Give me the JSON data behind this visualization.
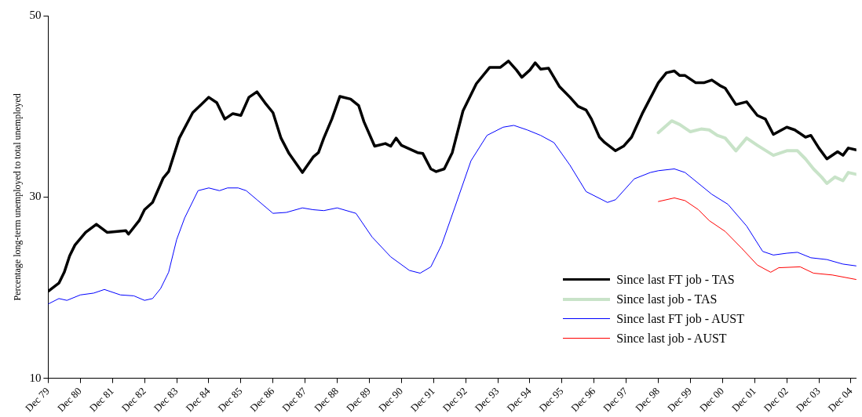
{
  "chart_data": {
    "type": "line",
    "ylabel": "Percentage long-term unemployed to total unemployed",
    "xlim": [
      "1979-12",
      "2005-02"
    ],
    "xticks": [
      {
        "value": "1979-12",
        "label": "Dec 79"
      },
      {
        "value": "1980-12",
        "label": "Dec 80"
      },
      {
        "value": "1981-12",
        "label": "Dec 81"
      },
      {
        "value": "1982-12",
        "label": "Dec 82"
      },
      {
        "value": "1983-12",
        "label": "Dec 83"
      },
      {
        "value": "1984-12",
        "label": "Dec 84"
      },
      {
        "value": "1985-12",
        "label": "Dec 85"
      },
      {
        "value": "1986-12",
        "label": "Dec 86"
      },
      {
        "value": "1987-12",
        "label": "Dec 87"
      },
      {
        "value": "1988-12",
        "label": "Dec 88"
      },
      {
        "value": "1989-12",
        "label": "Dec 89"
      },
      {
        "value": "1990-12",
        "label": "Dec 90"
      },
      {
        "value": "1991-12",
        "label": "Dec 91"
      },
      {
        "value": "1992-12",
        "label": "Dec 92"
      },
      {
        "value": "1993-12",
        "label": "Dec 93"
      },
      {
        "value": "1994-12",
        "label": "Dec 94"
      },
      {
        "value": "1995-12",
        "label": "Dec 95"
      },
      {
        "value": "1996-12",
        "label": "Dec 96"
      },
      {
        "value": "1997-12",
        "label": "Dec 97"
      },
      {
        "value": "1998-12",
        "label": "Dec 98"
      },
      {
        "value": "1999-12",
        "label": "Dec 99"
      },
      {
        "value": "2000-12",
        "label": "Dec 00"
      },
      {
        "value": "2001-12",
        "label": "Dec 01"
      },
      {
        "value": "2002-12",
        "label": "Dec 02"
      },
      {
        "value": "2003-12",
        "label": "Dec 03"
      },
      {
        "value": "2004-12",
        "label": "Dec 04"
      }
    ],
    "ylim": [
      10,
      50
    ],
    "yticks": [
      10,
      30,
      50
    ],
    "grid": false,
    "legend": "bottom right",
    "marker": "none",
    "series": [
      {
        "name": "Since last FT job - TAS",
        "color": "#000000",
        "x": [
          "1979-12",
          "1980-04",
          "1980-06",
          "1980-08",
          "1980-10",
          "1981-02",
          "1981-06",
          "1981-10",
          "1982-05",
          "1982-06",
          "1982-10",
          "1982-12",
          "1983-03",
          "1983-07",
          "1983-09",
          "1984-01",
          "1984-06",
          "1984-12",
          "1985-03",
          "1985-06",
          "1985-09",
          "1985-12",
          "1986-03",
          "1986-06",
          "1986-09",
          "1986-12",
          "1987-03",
          "1987-06",
          "1987-11",
          "1988-03",
          "1988-05",
          "1988-07",
          "1988-10",
          "1989-01",
          "1989-05",
          "1989-08",
          "1989-10",
          "1990-02",
          "1990-06",
          "1990-08",
          "1990-10",
          "1990-12",
          "1991-06",
          "1991-08",
          "1991-11",
          "1992-01",
          "1992-04",
          "1992-07",
          "1992-11",
          "1993-04",
          "1993-09",
          "1994-01",
          "1994-04",
          "1994-07",
          "1994-09",
          "1994-12",
          "1995-02",
          "1995-04",
          "1995-07",
          "1995-11",
          "1996-03",
          "1996-06",
          "1996-09",
          "1996-11",
          "1997-02",
          "1997-04",
          "1997-08",
          "1997-11",
          "1998-02",
          "1998-06",
          "1998-12",
          "1999-03",
          "1999-06",
          "1999-08",
          "1999-10",
          "2000-02",
          "2000-05",
          "2000-08",
          "2000-11",
          "2001-01",
          "2001-05",
          "2001-09",
          "2002-01",
          "2002-04",
          "2002-07",
          "2002-12",
          "2003-03",
          "2003-07",
          "2003-09",
          "2003-12",
          "2004-03",
          "2004-07",
          "2004-09",
          "2004-11",
          "2005-02"
        ],
        "values": [
          19.6,
          20.5,
          21.7,
          23.5,
          24.7,
          26.1,
          27.0,
          26.1,
          26.3,
          25.9,
          27.4,
          28.6,
          29.4,
          32.1,
          32.8,
          36.5,
          39.3,
          41.0,
          40.4,
          38.6,
          39.2,
          39.0,
          41.0,
          41.6,
          40.4,
          39.3,
          36.5,
          34.8,
          32.7,
          34.4,
          34.9,
          36.5,
          38.6,
          41.1,
          40.8,
          40.1,
          38.3,
          35.6,
          35.9,
          35.6,
          36.5,
          35.7,
          34.9,
          34.8,
          33.1,
          32.8,
          33.1,
          34.9,
          39.5,
          42.5,
          44.3,
          44.3,
          45.0,
          44.0,
          43.2,
          44.0,
          44.8,
          44.1,
          44.2,
          42.2,
          41.0,
          40.0,
          39.6,
          38.6,
          36.6,
          36.0,
          35.1,
          35.6,
          36.6,
          39.2,
          42.6,
          43.7,
          43.9,
          43.4,
          43.4,
          42.6,
          42.6,
          42.9,
          42.3,
          42.0,
          40.2,
          40.5,
          39.0,
          38.6,
          36.9,
          37.7,
          37.4,
          36.6,
          36.8,
          35.4,
          34.2,
          35.0,
          34.6,
          35.4,
          35.2
        ]
      },
      {
        "name": "Since last job - TAS",
        "color": "#c8e3c8",
        "x": [
          "1998-12",
          "1999-05",
          "1999-08",
          "1999-12",
          "2000-04",
          "2000-07",
          "2000-10",
          "2001-01",
          "2001-05",
          "2001-09",
          "2002-01",
          "2002-07",
          "2002-12",
          "2003-04",
          "2003-07",
          "2003-10",
          "2004-01",
          "2004-03",
          "2004-06",
          "2004-09",
          "2004-11",
          "2005-02"
        ],
        "values": [
          37.1,
          38.4,
          38.0,
          37.2,
          37.5,
          37.4,
          36.8,
          36.5,
          35.1,
          36.5,
          35.7,
          34.6,
          35.1,
          35.1,
          34.2,
          33.1,
          32.2,
          31.5,
          32.2,
          31.8,
          32.7,
          32.5
        ]
      },
      {
        "name": "Since last FT job - AUST",
        "color": "#0000ff",
        "x": [
          "1979-12",
          "1980-04",
          "1980-07",
          "1980-12",
          "1981-05",
          "1981-09",
          "1982-03",
          "1982-08",
          "1982-12",
          "1983-03",
          "1983-06",
          "1983-09",
          "1983-12",
          "1984-03",
          "1984-08",
          "1984-12",
          "1985-04",
          "1985-07",
          "1985-11",
          "1986-02",
          "1986-06",
          "1986-12",
          "1987-05",
          "1987-11",
          "1988-03",
          "1988-07",
          "1988-12",
          "1989-07",
          "1990-01",
          "1990-08",
          "1991-03",
          "1991-07",
          "1991-11",
          "1992-03",
          "1992-08",
          "1993-02",
          "1993-08",
          "1994-02",
          "1994-06",
          "1994-11",
          "1995-04",
          "1995-09",
          "1996-03",
          "1996-09",
          "1997-05",
          "1997-08",
          "1998-03",
          "1998-09",
          "1998-12",
          "1999-06",
          "1999-10",
          "2000-08",
          "2001-02",
          "2001-09",
          "2002-03",
          "2002-07",
          "2002-12",
          "2003-04",
          "2003-09",
          "2004-03",
          "2004-09",
          "2005-02"
        ],
        "values": [
          18.2,
          18.8,
          18.6,
          19.2,
          19.4,
          19.8,
          19.2,
          19.1,
          18.6,
          18.8,
          19.9,
          21.7,
          25.3,
          27.7,
          30.7,
          31.0,
          30.7,
          31.0,
          31.0,
          30.7,
          29.7,
          28.2,
          28.3,
          28.8,
          28.6,
          28.5,
          28.8,
          28.2,
          25.6,
          23.4,
          21.9,
          21.6,
          22.3,
          24.7,
          28.9,
          34.0,
          36.8,
          37.7,
          37.9,
          37.4,
          36.8,
          36.0,
          33.5,
          30.6,
          29.4,
          29.7,
          32.0,
          32.7,
          32.9,
          33.1,
          32.7,
          30.3,
          29.2,
          26.8,
          24.0,
          23.6,
          23.8,
          23.9,
          23.3,
          23.1,
          22.6,
          22.4
        ]
      },
      {
        "name": "Since last job - AUST",
        "color": "#ff0000",
        "x": [
          "1998-12",
          "1999-06",
          "1999-10",
          "2000-03",
          "2000-07",
          "2001-01",
          "2001-07",
          "2002-01",
          "2002-06",
          "2002-09",
          "2003-05",
          "2003-10",
          "2004-05",
          "2005-02"
        ],
        "values": [
          29.5,
          29.9,
          29.6,
          28.6,
          27.4,
          26.2,
          24.4,
          22.5,
          21.7,
          22.2,
          22.3,
          21.6,
          21.4,
          20.9
        ]
      }
    ]
  }
}
